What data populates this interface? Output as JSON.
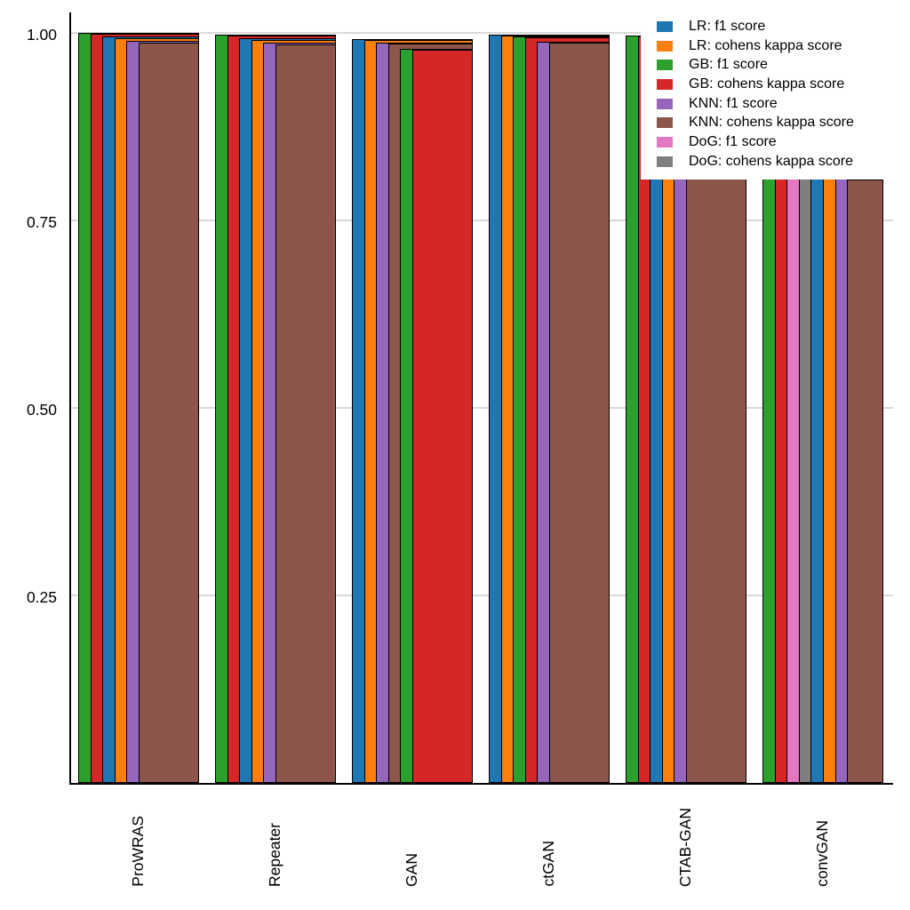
{
  "chart_data": {
    "type": "bar",
    "title": "",
    "xlabel": "",
    "ylabel": "",
    "categories": [
      "ProWRAS",
      "Repeater",
      "GAN",
      "ctGAN",
      "CTAB-GAN",
      "convGAN"
    ],
    "series": [
      {
        "name": "LR: f1 score",
        "color": "#1f77b4",
        "values": [
          0.9955,
          0.993,
          0.992,
          0.998,
          0.8064,
          0.806
        ]
      },
      {
        "name": "LR: cohens kappa score",
        "color": "#ff7f0e",
        "values": [
          0.993,
          0.991,
          0.9905,
          0.997,
          0.8062,
          0.8058
        ]
      },
      {
        "name": "GB: f1 score",
        "color": "#2ca02c",
        "values": [
          1.0,
          0.998,
          0.979,
          0.9955,
          0.997,
          0.8068
        ]
      },
      {
        "name": "GB: cohens kappa score",
        "color": "#d62728",
        "values": [
          0.9985,
          0.9965,
          0.977,
          0.994,
          0.995,
          0.8066
        ]
      },
      {
        "name": "KNN: f1 score",
        "color": "#9467bd",
        "values": [
          0.989,
          0.987,
          0.987,
          0.988,
          0.806,
          0.8056
        ]
      },
      {
        "name": "KNN: cohens kappa score",
        "color": "#8c564b",
        "values": [
          0.9875,
          0.985,
          0.9855,
          0.9865,
          0.8052,
          0.805
        ]
      },
      {
        "name": "DoG: f1 score",
        "color": "#e377c2",
        "values": [
          null,
          null,
          null,
          null,
          null,
          0.8064
        ]
      },
      {
        "name": "DoG: cohens kappa score",
        "color": "#7f7f7f",
        "values": [
          null,
          null,
          null,
          null,
          null,
          0.8062
        ]
      }
    ],
    "yticks": [
      {
        "value": 0.25,
        "label": "0.25"
      },
      {
        "value": 0.5,
        "label": "0.50"
      },
      {
        "value": 0.75,
        "label": "0.75"
      },
      {
        "value": 1.0,
        "label": "1.00"
      }
    ],
    "ylim": [
      0,
      1.03
    ],
    "grid": "horizontal",
    "grid_color": "#d9d9d9",
    "edge_color": "#000000",
    "legend_position": "upper right",
    "bar_style": "overlapped: within each group bars are sorted tallest-first, left edges staggered, all sharing the group's right edge; absent series (DoG outside convGAN) are not drawn"
  }
}
